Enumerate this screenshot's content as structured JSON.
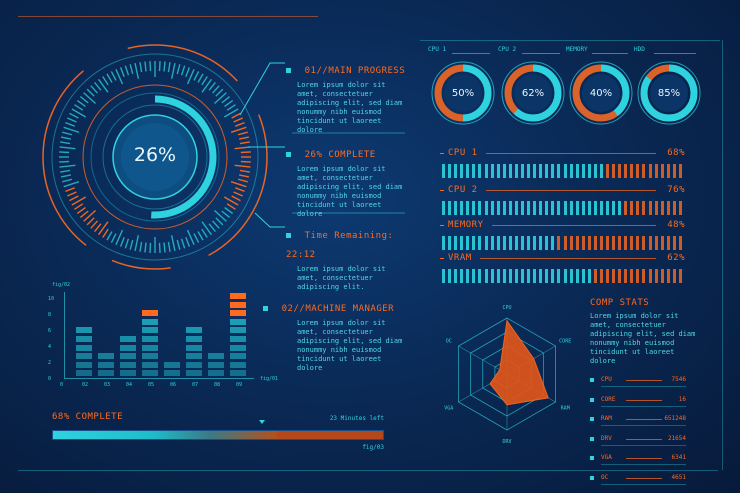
{
  "main_gauge": {
    "value_label": "26%",
    "percent": 26
  },
  "panels": {
    "main_progress": {
      "title": "01//MAIN PROGRESS",
      "text": "Lorem ipsum dolor sit\namet, consectetuer\nadipiscing elit, sed diam\nnonummy nibh euismod\ntincidunt ut laoreet\ndolore"
    },
    "complete": {
      "title": "26% COMPLETE",
      "text": "Lorem ipsum dolor sit\namet, consectetuer\nadipiscing elit, sed diam\nnonummy nibh euismod\ntincidunt ut laoreet\ndolore"
    },
    "time": {
      "title": "Time Remaining: 22:12",
      "text": "Lorem ipsum dolor sit\namet, consectetuer\nadipiscing elit."
    },
    "machine": {
      "title": "02//MACHINE MANAGER",
      "text": "Lorem ipsum dolor sit\namet, consectetuer\nadipiscing elit, sed diam\nnonummy nibh euismod\ntincidunt ut laoreet\ndolore"
    }
  },
  "donuts": [
    {
      "tag": "CPU 1",
      "label": "50%",
      "percent": 50
    },
    {
      "tag": "CPU 2",
      "label": "62%",
      "percent": 62
    },
    {
      "tag": "MEMORY",
      "label": "40%",
      "percent": 40
    },
    {
      "tag": "HDD",
      "label": "85%",
      "percent": 85
    }
  ],
  "bars": [
    {
      "name": "CPU 1",
      "value": "68%",
      "percent": 68
    },
    {
      "name": "CPU 2",
      "value": "76%",
      "percent": 76
    },
    {
      "name": "MEMORY",
      "value": "48%",
      "percent": 48
    },
    {
      "name": "VRAM",
      "value": "62%",
      "percent": 62
    }
  ],
  "chart": {
    "top_label": "fig/02",
    "right_label": "fig/01",
    "yticks": [
      "10",
      "8",
      "6",
      "4",
      "2",
      "0"
    ],
    "xticks": [
      "0",
      "02",
      "03",
      "04",
      "05",
      "06",
      "07",
      "08",
      "09"
    ],
    "levels": [
      6,
      3,
      5,
      8,
      2,
      6,
      3,
      10
    ],
    "orange_levels": [
      0,
      0,
      0,
      1,
      0,
      0,
      0,
      3
    ]
  },
  "progress": {
    "label": "68% COMPLETE",
    "note": "23 Minutes left",
    "fig": "fig/03",
    "percent": 68
  },
  "radar": {
    "axes": [
      "CPU",
      "CORE",
      "RAM",
      "DRV",
      "VGA",
      "OC"
    ],
    "values": [
      0.95,
      0.55,
      0.85,
      0.55,
      0.35,
      0.15
    ]
  },
  "comp_stats": {
    "title": "COMP STATS",
    "text": "Lorem ipsum dolor sit\namet, consectetuer\nadipiscing elit, sed diam\nnonummy nibh euismod\ntincidunt ut laoreet\ndolore",
    "rows": [
      {
        "name": "CPU",
        "value": "7546"
      },
      {
        "name": "CORE",
        "value": "16"
      },
      {
        "name": "RAM",
        "value": "651248"
      },
      {
        "name": "DRV",
        "value": "21654"
      },
      {
        "name": "VGA",
        "value": "6341"
      },
      {
        "name": "OC",
        "value": "4651"
      }
    ]
  }
}
